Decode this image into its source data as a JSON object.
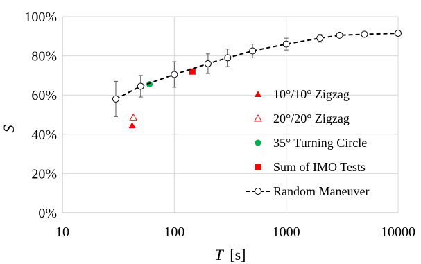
{
  "chart_data": {
    "type": "scatter",
    "x_scale": "log",
    "xlim": [
      10,
      10000
    ],
    "ylim": [
      0,
      100
    ],
    "grid": "vertical gridlines at decades, horizontal gridlines every 20%",
    "legend_position": "right",
    "x_ticks": [
      "10",
      "100",
      "1000",
      "10000"
    ],
    "y_ticks": [
      "0%",
      "20%",
      "40%",
      "60%",
      "80%",
      "100%"
    ],
    "xlabel_var": "T",
    "xlabel_unit": "[s]",
    "ylabel": "S",
    "series": [
      {
        "name": "10°/10° Zigzag",
        "marker": "triangle-filled",
        "color": "#ff0000",
        "points": [
          {
            "x": 42,
            "y": 44.5
          }
        ]
      },
      {
        "name": "20°/20° Zigzag",
        "marker": "triangle-open",
        "color": "#ff0000",
        "points": [
          {
            "x": 43,
            "y": 48.5
          }
        ]
      },
      {
        "name": "35° Turning Circle",
        "marker": "circle-filled",
        "color": "#00b050",
        "points": [
          {
            "x": 60,
            "y": 65.5
          }
        ]
      },
      {
        "name": "Sum of IMO Tests",
        "marker": "square-filled",
        "color": "#ff0000",
        "points": [
          {
            "x": 145,
            "y": 72
          }
        ]
      },
      {
        "name": "Random Maneuver",
        "marker": "circle-open",
        "line": "dashed",
        "color": "#000000",
        "points": [
          {
            "x": 30,
            "y": 58,
            "err": 9
          },
          {
            "x": 50,
            "y": 64.5,
            "err": 5.5
          },
          {
            "x": 100,
            "y": 70.5,
            "err": 6.5
          },
          {
            "x": 200,
            "y": 76,
            "err": 5
          },
          {
            "x": 300,
            "y": 79,
            "err": 4.5
          },
          {
            "x": 500,
            "y": 82.5,
            "err": 3.5
          },
          {
            "x": 1000,
            "y": 86,
            "err": 3
          },
          {
            "x": 2000,
            "y": 89,
            "err": 2
          },
          {
            "x": 3000,
            "y": 90.5,
            "err": 1
          },
          {
            "x": 5000,
            "y": 91,
            "err": 1.2
          },
          {
            "x": 10000,
            "y": 91.5,
            "err": 0.5
          }
        ]
      }
    ]
  }
}
